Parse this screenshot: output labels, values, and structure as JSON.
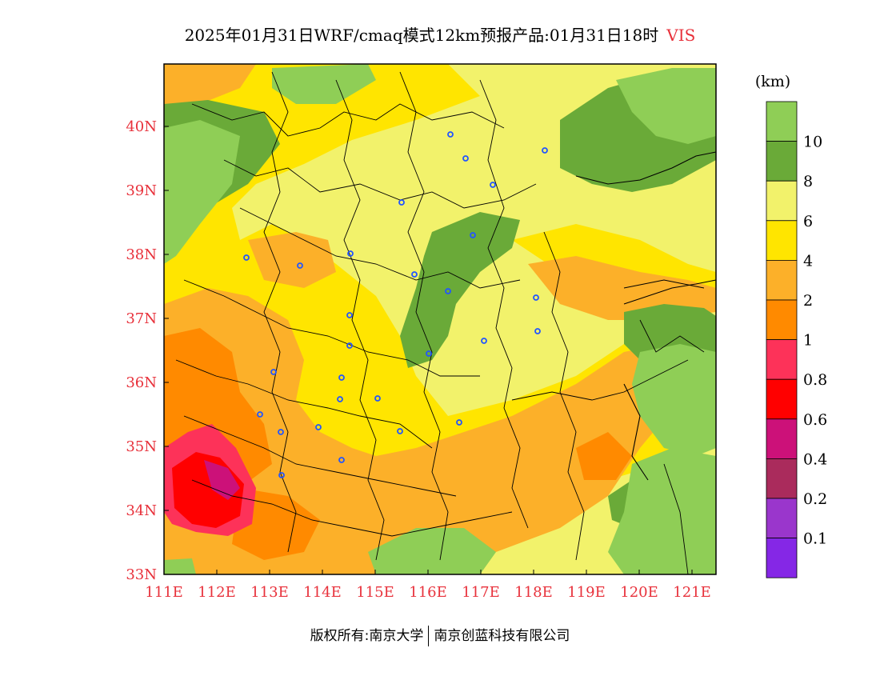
{
  "title": {
    "main": "2025年01月31日WRF/cmaq模式12km预报产品:01月31日18时",
    "variable": "VIS"
  },
  "legend": {
    "unit": "(km)",
    "classes": [
      {
        "label": "",
        "color": "#8fce56"
      },
      {
        "label": "10",
        "color": "#6aaa38"
      },
      {
        "label": "8",
        "color": "#f2f26b"
      },
      {
        "label": "6",
        "color": "#ffe500"
      },
      {
        "label": "4",
        "color": "#fcb029"
      },
      {
        "label": "2",
        "color": "#ff8a00"
      },
      {
        "label": "1",
        "color": "#fd3259"
      },
      {
        "label": "0.8",
        "color": "#ff0000"
      },
      {
        "label": "0.6",
        "color": "#cc1179"
      },
      {
        "label": "0.4",
        "color": "#aa2b5c"
      },
      {
        "label": "0.2",
        "color": "#9a36cc"
      },
      {
        "label": "0.1",
        "color": "#8527e6"
      }
    ]
  },
  "axes": {
    "x_ticks": [
      "111E",
      "112E",
      "113E",
      "114E",
      "115E",
      "116E",
      "117E",
      "118E",
      "119E",
      "120E",
      "121E"
    ],
    "y_ticks": [
      "33N",
      "34N",
      "35N",
      "36N",
      "37N",
      "38N",
      "39N",
      "40N"
    ]
  },
  "footer": {
    "left": "版权所有:南京大学",
    "right": "南京创蓝科技有限公司"
  },
  "colors": {
    "tick": "#e8313b",
    "city": "#2255ff"
  }
}
